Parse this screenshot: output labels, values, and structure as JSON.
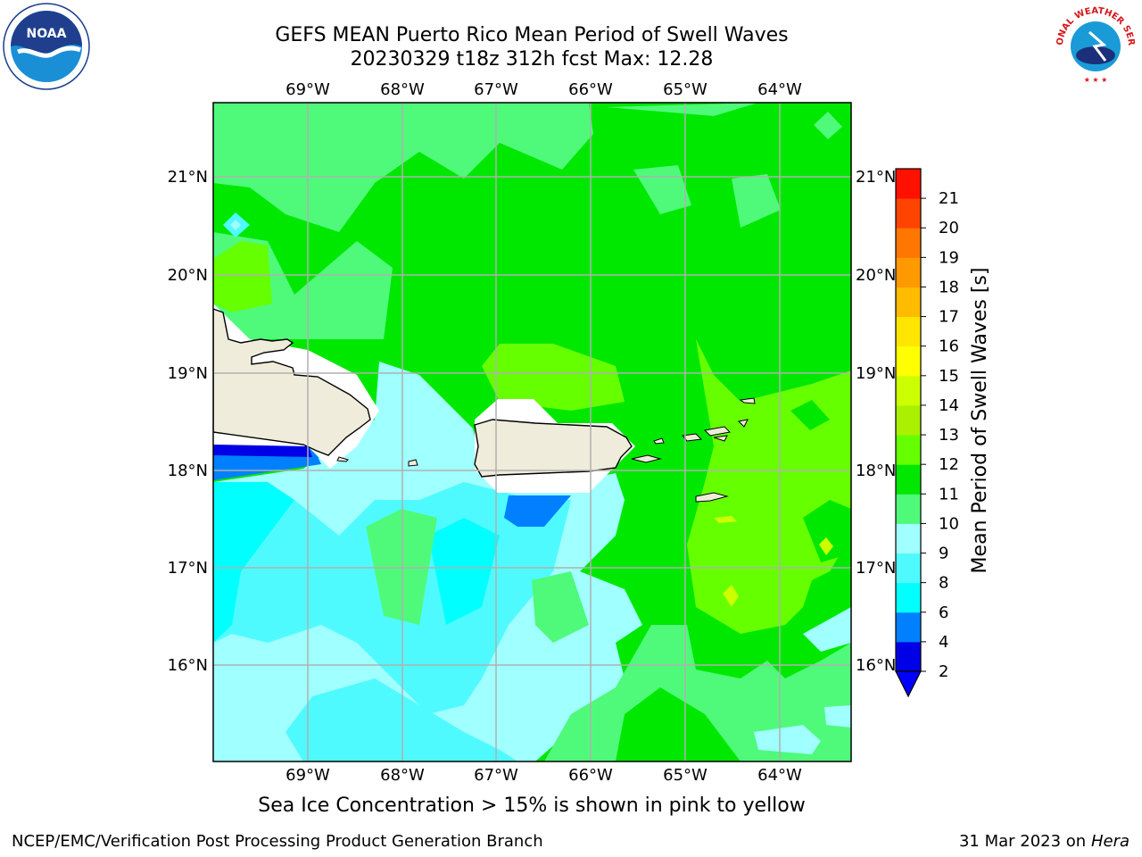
{
  "header": {
    "title": "GEFS MEAN Puerto Rico Mean Period of Swell Waves",
    "subtitle": "20230329 t18z 312h fcst   Max: 12.28"
  },
  "logos": {
    "left": "noaa-logo",
    "right": "nws-logo",
    "nws_text": "NATIONAL WEATHER SERVICE"
  },
  "map": {
    "lon_labels": [
      "69°W",
      "68°W",
      "67°W",
      "66°W",
      "65°W",
      "64°W"
    ],
    "lat_labels": [
      "21°N",
      "20°N",
      "19°N",
      "18°N",
      "17°N",
      "16°N"
    ],
    "land_color": "#efecdb",
    "mask_color": "#ffffff"
  },
  "colorbar": {
    "label": "Mean Period of Swell Waves [s]",
    "ticks": [
      "2",
      "4",
      "6",
      "8",
      "9",
      "10",
      "11",
      "12",
      "13",
      "14",
      "15",
      "16",
      "17",
      "18",
      "19",
      "20",
      "21"
    ],
    "colors": [
      "#0000e6",
      "#0080ff",
      "#00ffff",
      "#4ffaff",
      "#a0ffff",
      "#4ffa7a",
      "#00e800",
      "#66ff00",
      "#aaf000",
      "#ccff00",
      "#ffff00",
      "#ffe600",
      "#ffbb00",
      "#ff9900",
      "#ff7700",
      "#ff4400",
      "#ff1100"
    ],
    "under_color": "#0000ff"
  },
  "footer": {
    "note": "Sea Ice Concentration > 15% is shown in pink to yellow",
    "org": "NCEP/EMC/Verification Post Processing Product Generation Branch",
    "date": "31 Mar 2023 on",
    "machine": "Hera"
  }
}
